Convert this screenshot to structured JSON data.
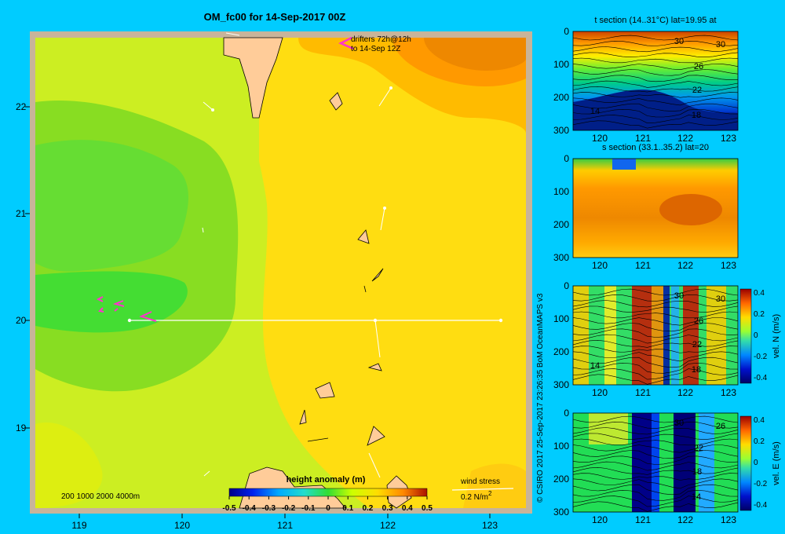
{
  "main": {
    "title": "OM_fc00 for 14-Sep-2017 00Z",
    "x_ticks": [
      "119",
      "120",
      "121",
      "122",
      "123"
    ],
    "y_ticks": [
      "22",
      "21",
      "20",
      "19"
    ],
    "drifters_line1": "drifters 72h@12h",
    "drifters_line2": "to 14-Sep 12Z",
    "depth_legend": "200  1000  2000  4000m",
    "colorbar_title": "height anomaly  (m)",
    "colorbar_ticks": [
      "-0.5",
      "-0.4",
      "-0.3",
      "-0.2",
      "-0.1",
      "0",
      "0.1",
      "0.2",
      "0.3",
      "0.4",
      "0.5"
    ],
    "wind_label": "wind stress",
    "wind_scale": "0.2 N/m",
    "wind_scale_sup": "2"
  },
  "credit": "© CSIRO 2017   25-Sep-2017 23:26:35 BoM OceanMAPS v3",
  "panels": [
    {
      "title": "t section (14..31°C) lat=19.95 at",
      "y_ticks": [
        "0",
        "100",
        "200",
        "300"
      ],
      "x_ticks": [
        "120",
        "121",
        "122",
        "123"
      ],
      "contours": [
        "30",
        "30",
        "26",
        "22",
        "18",
        "14"
      ],
      "cb_label": ""
    },
    {
      "title": "s section (33.1..35.2) lat=20",
      "y_ticks": [
        "0",
        "100",
        "200",
        "300"
      ],
      "x_ticks": [
        "120",
        "121",
        "122",
        "123"
      ],
      "contours": [],
      "cb_label": ""
    },
    {
      "title": "",
      "y_ticks": [
        "0",
        "100",
        "200",
        "300"
      ],
      "x_ticks": [
        "120",
        "121",
        "122",
        "123"
      ],
      "contours": [
        "30",
        "30",
        "26",
        "22",
        "18",
        "14"
      ],
      "cb_label": "vel. N (m/s)"
    },
    {
      "title": "",
      "y_ticks": [
        "0",
        "100",
        "200",
        "300"
      ],
      "x_ticks": [
        "120",
        "121",
        "122",
        "123"
      ],
      "contours": [
        "30",
        "26",
        "22",
        "18",
        "14"
      ],
      "cb_label": "vel. E (m/s)"
    }
  ],
  "vel_cb_ticks": [
    "0.4",
    "0.2",
    "0",
    "-0.2",
    "-0.4"
  ],
  "chart_data": [
    {
      "type": "heatmap",
      "title": "OM_fc00 for 14-Sep-2017 00Z",
      "xlabel": "",
      "ylabel": "",
      "xlim": [
        118.5,
        123.5
      ],
      "ylim": [
        18.5,
        22.7
      ],
      "colorbar": {
        "label": "height anomaly  (m)",
        "range": [
          -0.5,
          0.5
        ]
      },
      "section_line": {
        "lat": 20.0,
        "lon": [
          119.5,
          123.2
        ]
      }
    },
    {
      "type": "heatmap",
      "title": "t section (14..31°C) lat=19.95 at",
      "xlim": [
        119.5,
        123.2
      ],
      "ylim": [
        300,
        0
      ],
      "contour_labels": [
        30,
        26,
        22,
        18,
        14
      ]
    },
    {
      "type": "heatmap",
      "title": "s section (33.1..35.2) lat=20",
      "xlim": [
        119.5,
        123.2
      ],
      "ylim": [
        300,
        0
      ]
    },
    {
      "type": "heatmap",
      "title": "",
      "xlim": [
        119.5,
        123.2
      ],
      "ylim": [
        300,
        0
      ],
      "colorbar": {
        "label": "vel. N (m/s)",
        "range": [
          -0.4,
          0.4
        ]
      }
    },
    {
      "type": "heatmap",
      "title": "",
      "xlim": [
        119.5,
        123.2
      ],
      "ylim": [
        300,
        0
      ],
      "colorbar": {
        "label": "vel. E (m/s)",
        "range": [
          -0.4,
          0.4
        ]
      }
    }
  ]
}
